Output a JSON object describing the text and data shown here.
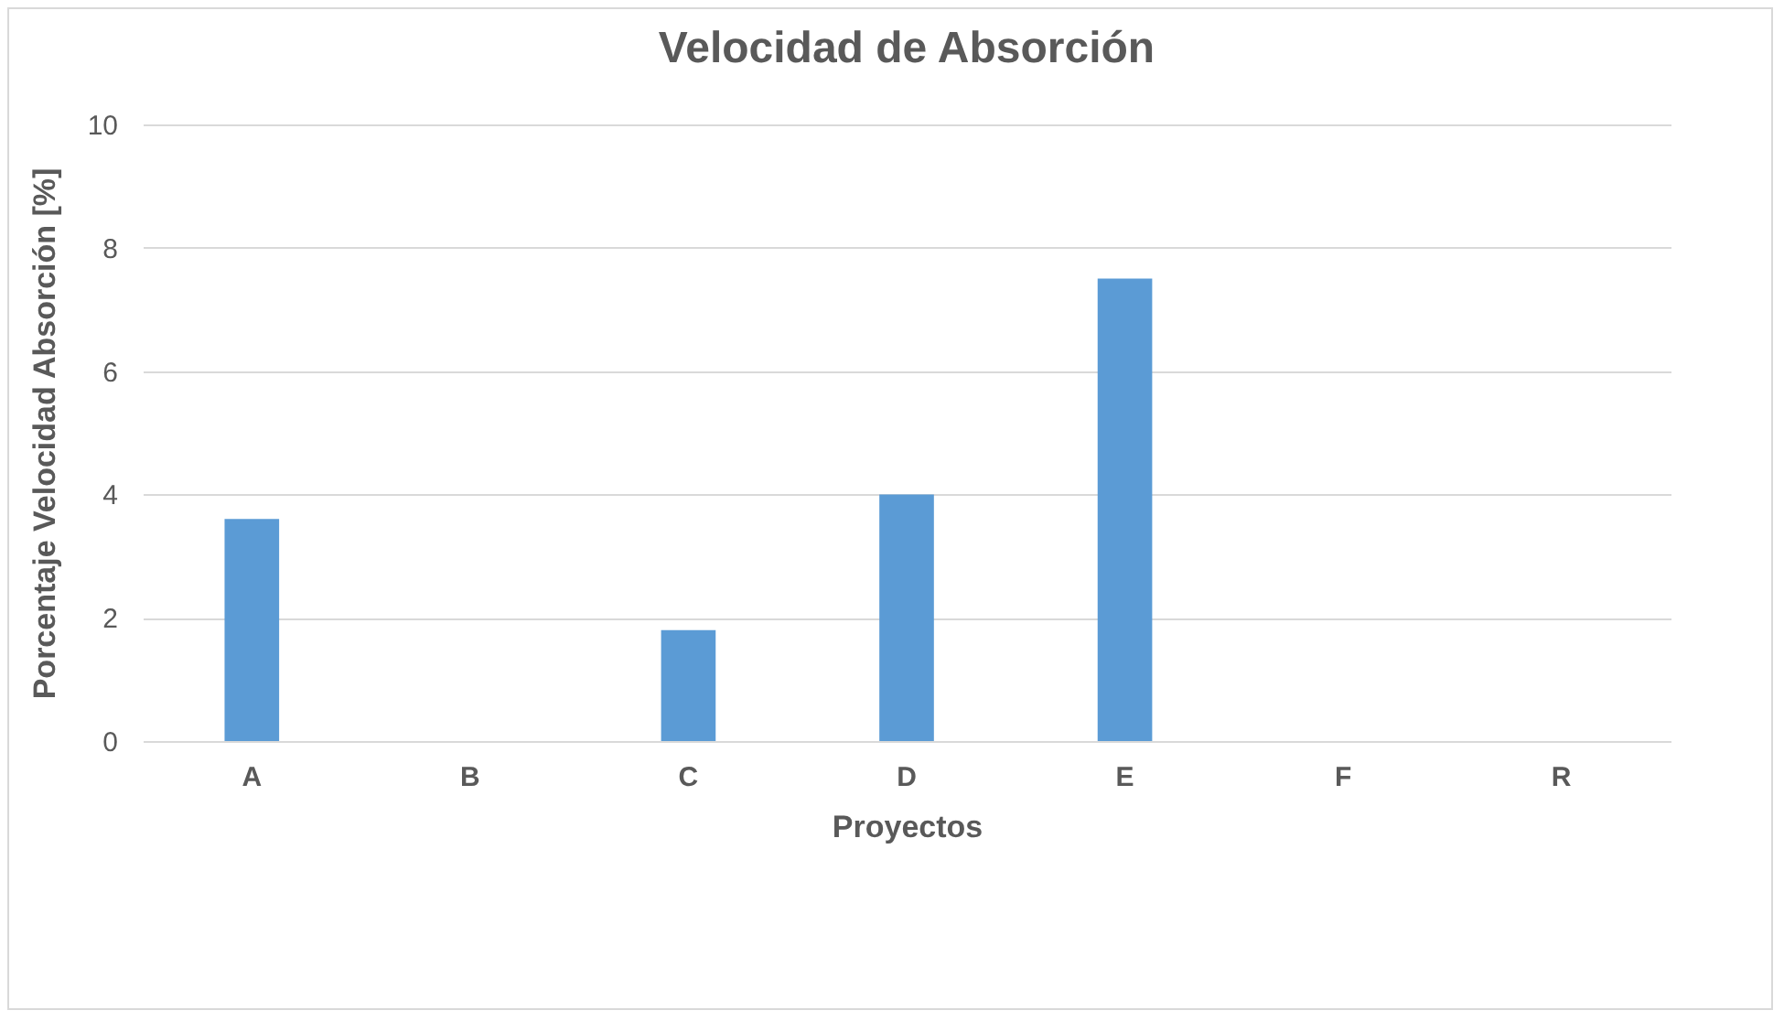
{
  "chart_data": {
    "type": "bar",
    "title": "Velocidad de Absorción",
    "xlabel": "Proyectos",
    "ylabel": "Porcentaje Velocidad Absorción [%]",
    "categories": [
      "A",
      "B",
      "C",
      "D",
      "E",
      "F",
      "R"
    ],
    "values": [
      3.6,
      0,
      1.8,
      4.0,
      7.5,
      0,
      0
    ],
    "color": "#5b9bd5",
    "ylim": [
      0,
      10
    ],
    "yticks": [
      0,
      2,
      4,
      6,
      8,
      10
    ],
    "grid": "y"
  }
}
